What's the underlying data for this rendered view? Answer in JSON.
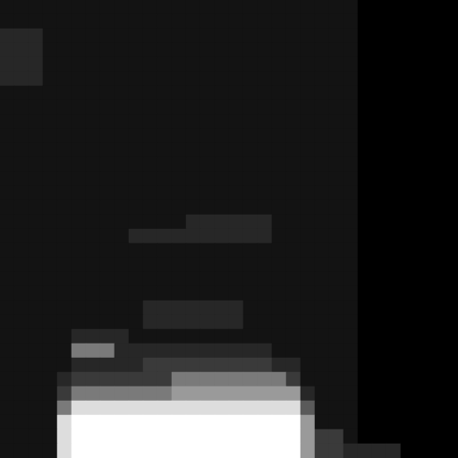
{
  "chart_data": {
    "type": "heatmap",
    "tick_labels": false,
    "cells": [
      [
        1,
        1,
        1,
        1,
        1,
        1,
        1,
        1,
        1,
        1,
        1,
        1,
        1,
        1,
        1,
        1,
        1,
        1,
        1,
        1,
        1,
        1,
        1,
        1,
        1,
        0,
        0,
        0,
        0,
        0,
        0,
        0
      ],
      [
        1,
        1,
        1,
        1,
        1,
        1,
        1,
        1,
        1,
        1,
        1,
        1,
        1,
        1,
        1,
        1,
        1,
        1,
        1,
        1,
        1,
        1,
        1,
        1,
        1,
        0,
        0,
        0,
        0,
        0,
        0,
        0
      ],
      [
        2,
        2,
        2,
        1,
        1,
        1,
        1,
        1,
        1,
        1,
        1,
        1,
        1,
        1,
        1,
        1,
        1,
        1,
        1,
        1,
        1,
        1,
        1,
        1,
        1,
        0,
        0,
        0,
        0,
        0,
        0,
        0
      ],
      [
        2,
        2,
        2,
        1,
        1,
        1,
        1,
        1,
        1,
        1,
        1,
        1,
        1,
        1,
        1,
        1,
        1,
        1,
        1,
        1,
        1,
        1,
        1,
        1,
        1,
        0,
        0,
        0,
        0,
        0,
        0,
        0
      ],
      [
        2,
        2,
        2,
        1,
        1,
        1,
        1,
        1,
        1,
        1,
        1,
        1,
        1,
        1,
        1,
        1,
        1,
        1,
        1,
        1,
        1,
        1,
        1,
        1,
        1,
        0,
        0,
        0,
        0,
        0,
        0,
        0
      ],
      [
        2,
        2,
        2,
        1,
        1,
        1,
        1,
        1,
        1,
        1,
        1,
        1,
        1,
        1,
        1,
        1,
        1,
        1,
        1,
        1,
        1,
        1,
        1,
        1,
        1,
        0,
        0,
        0,
        0,
        0,
        0,
        0
      ],
      [
        1,
        1,
        1,
        1,
        1,
        1,
        1,
        1,
        1,
        1,
        1,
        1,
        1,
        1,
        1,
        1,
        1,
        1,
        1,
        1,
        1,
        1,
        1,
        1,
        1,
        0,
        0,
        0,
        0,
        0,
        0,
        0
      ],
      [
        1,
        1,
        1,
        1,
        1,
        1,
        1,
        1,
        1,
        1,
        1,
        1,
        1,
        1,
        1,
        1,
        1,
        1,
        1,
        1,
        1,
        1,
        1,
        1,
        1,
        0,
        0,
        0,
        0,
        0,
        0,
        0
      ],
      [
        1,
        1,
        1,
        1,
        1,
        1,
        1,
        1,
        1,
        1,
        1,
        1,
        1,
        1,
        1,
        1,
        1,
        1,
        1,
        1,
        1,
        1,
        1,
        1,
        1,
        0,
        0,
        0,
        0,
        0,
        0,
        0
      ],
      [
        1,
        1,
        1,
        1,
        1,
        1,
        1,
        1,
        1,
        1,
        1,
        1,
        1,
        1,
        1,
        1,
        1,
        1,
        1,
        1,
        1,
        1,
        1,
        1,
        1,
        0,
        0,
        0,
        0,
        0,
        0,
        0
      ],
      [
        1,
        1,
        1,
        1,
        1,
        1,
        1,
        1,
        1,
        1,
        1,
        1,
        1,
        1,
        1,
        1,
        1,
        1,
        1,
        1,
        1,
        1,
        1,
        1,
        1,
        0,
        0,
        0,
        0,
        0,
        0,
        0
      ],
      [
        1,
        1,
        1,
        1,
        1,
        1,
        1,
        1,
        1,
        1,
        1,
        1,
        1,
        1,
        1,
        1,
        1,
        1,
        1,
        1,
        1,
        1,
        1,
        1,
        1,
        0,
        0,
        0,
        0,
        0,
        0,
        0
      ],
      [
        1,
        1,
        1,
        1,
        1,
        1,
        1,
        1,
        1,
        1,
        1,
        1,
        1,
        1,
        1,
        1,
        1,
        1,
        1,
        1,
        1,
        1,
        1,
        1,
        1,
        0,
        0,
        0,
        0,
        0,
        0,
        0
      ],
      [
        1,
        1,
        1,
        1,
        1,
        1,
        1,
        1,
        1,
        1,
        1,
        1,
        1,
        1,
        1,
        1,
        1,
        1,
        1,
        1,
        1,
        1,
        1,
        1,
        1,
        0,
        0,
        0,
        0,
        0,
        0,
        0
      ],
      [
        1,
        1,
        1,
        1,
        1,
        1,
        1,
        1,
        1,
        1,
        1,
        1,
        1,
        1,
        1,
        1,
        1,
        1,
        1,
        1,
        1,
        1,
        1,
        1,
        1,
        0,
        0,
        0,
        0,
        0,
        0,
        0
      ],
      [
        1,
        1,
        1,
        1,
        1,
        1,
        1,
        1,
        1,
        1,
        1,
        1,
        1,
        2,
        2,
        2,
        2,
        2,
        2,
        1,
        1,
        1,
        1,
        1,
        1,
        0,
        0,
        0,
        0,
        0,
        0,
        0
      ],
      [
        1,
        1,
        1,
        1,
        1,
        1,
        1,
        1,
        1,
        2,
        2,
        2,
        2,
        2,
        2,
        2,
        2,
        2,
        2,
        1,
        1,
        1,
        1,
        1,
        1,
        0,
        0,
        0,
        0,
        0,
        0,
        0
      ],
      [
        1,
        1,
        1,
        1,
        1,
        1,
        1,
        1,
        1,
        1,
        1,
        1,
        1,
        1,
        1,
        1,
        1,
        1,
        1,
        1,
        1,
        1,
        1,
        1,
        1,
        0,
        0,
        0,
        0,
        0,
        0,
        0
      ],
      [
        1,
        1,
        1,
        1,
        1,
        1,
        1,
        1,
        1,
        1,
        1,
        1,
        1,
        1,
        1,
        1,
        1,
        1,
        1,
        1,
        1,
        1,
        1,
        1,
        1,
        0,
        0,
        0,
        0,
        0,
        0,
        0
      ],
      [
        1,
        1,
        1,
        1,
        1,
        1,
        1,
        1,
        1,
        1,
        1,
        1,
        1,
        1,
        1,
        1,
        1,
        1,
        1,
        1,
        1,
        1,
        1,
        1,
        1,
        0,
        0,
        0,
        0,
        0,
        0,
        0
      ],
      [
        1,
        1,
        1,
        1,
        1,
        1,
        1,
        1,
        1,
        1,
        1,
        1,
        1,
        1,
        1,
        1,
        1,
        1,
        1,
        1,
        1,
        1,
        1,
        1,
        1,
        0,
        0,
        0,
        0,
        0,
        0,
        0
      ],
      [
        1,
        1,
        1,
        1,
        1,
        1,
        1,
        1,
        1,
        1,
        2,
        2,
        2,
        2,
        2,
        2,
        2,
        1,
        1,
        1,
        1,
        1,
        1,
        1,
        1,
        0,
        0,
        0,
        0,
        0,
        0,
        0
      ],
      [
        1,
        1,
        1,
        1,
        1,
        1,
        1,
        1,
        1,
        1,
        2,
        2,
        2,
        2,
        2,
        2,
        2,
        1,
        1,
        1,
        1,
        1,
        1,
        1,
        1,
        0,
        0,
        0,
        0,
        0,
        0,
        0
      ],
      [
        1,
        1,
        1,
        1,
        1,
        2,
        2,
        2,
        2,
        1,
        1,
        1,
        1,
        1,
        1,
        1,
        1,
        1,
        1,
        1,
        1,
        1,
        1,
        1,
        1,
        0,
        0,
        0,
        0,
        0,
        0,
        0
      ],
      [
        1,
        1,
        1,
        1,
        1,
        5,
        5,
        5,
        2,
        2,
        2,
        2,
        2,
        2,
        2,
        2,
        2,
        2,
        2,
        1,
        1,
        1,
        1,
        1,
        1,
        0,
        0,
        0,
        0,
        0,
        0,
        0
      ],
      [
        1,
        1,
        1,
        1,
        1,
        2,
        2,
        2,
        2,
        2,
        3,
        3,
        3,
        3,
        3,
        3,
        3,
        3,
        3,
        2,
        2,
        1,
        1,
        1,
        1,
        0,
        0,
        0,
        0,
        0,
        0,
        0
      ],
      [
        1,
        1,
        1,
        1,
        2,
        3,
        3,
        3,
        3,
        3,
        3,
        3,
        5,
        5,
        5,
        5,
        5,
        5,
        5,
        5,
        3,
        1,
        1,
        1,
        1,
        0,
        0,
        0,
        0,
        0,
        0,
        0
      ],
      [
        1,
        1,
        1,
        1,
        3,
        5,
        5,
        5,
        5,
        5,
        5,
        5,
        6,
        6,
        6,
        6,
        6,
        6,
        6,
        6,
        6,
        2,
        1,
        1,
        1,
        0,
        0,
        0,
        0,
        0,
        0,
        0
      ],
      [
        1,
        1,
        1,
        1,
        5,
        8,
        8,
        8,
        8,
        8,
        8,
        8,
        8,
        8,
        8,
        8,
        8,
        8,
        8,
        8,
        8,
        4,
        1,
        1,
        1,
        0,
        0,
        0,
        0,
        0,
        0,
        0
      ],
      [
        1,
        1,
        1,
        1,
        8,
        9,
        9,
        9,
        9,
        9,
        9,
        9,
        9,
        9,
        9,
        9,
        9,
        9,
        9,
        9,
        9,
        6,
        1,
        1,
        1,
        0,
        0,
        0,
        0,
        0,
        0,
        0
      ],
      [
        1,
        1,
        1,
        1,
        8,
        9,
        9,
        9,
        9,
        9,
        9,
        9,
        9,
        9,
        9,
        9,
        9,
        9,
        9,
        9,
        9,
        6,
        3,
        3,
        1,
        0,
        0,
        0,
        0,
        0,
        0,
        0
      ],
      [
        1,
        1,
        1,
        1,
        8,
        9,
        9,
        9,
        9,
        9,
        9,
        9,
        9,
        9,
        9,
        9,
        9,
        9,
        9,
        9,
        9,
        6,
        3,
        3,
        2,
        2,
        2,
        2,
        0,
        0,
        0,
        0
      ]
    ]
  }
}
